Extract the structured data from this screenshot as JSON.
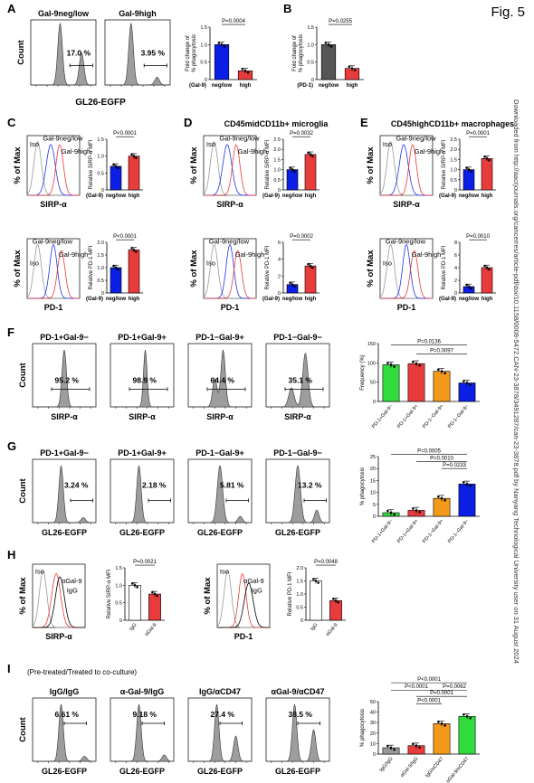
{
  "figure": {
    "title": "Fig. 5",
    "side_note": "Downloaded from http://aacrjournals.org/cancerres/article-pdf/doi/10.1158/0008-5472.CAN-23-3878/3491287/can-23-3878.pdf by Nanyang Technological University user on 31 August 2024",
    "axis": {
      "count": "Count",
      "max": "% of Max",
      "gl26": "GL26-EGFP",
      "sirpa": "SIRP-α",
      "pd1": "PD-1",
      "fold": "Fold change of",
      "fold2": "% phagocytosis",
      "rel_sirpa": "Relative SIRP-α MFI",
      "rel_pd1": "Relative PD-1 MFI",
      "freq": "Frequency (%)",
      "phago": "% phagocytosis"
    },
    "groups": {
      "gal9": "(Gal-9)",
      "pd1": "(PD-1)",
      "neg": "neg/low",
      "high": "high",
      "igg": "IgG",
      "agal9": "αGal-9",
      "iso": "Iso",
      "gal9neg": "Gal-9neg/low",
      "gal9high": "Gal-9high",
      "igg_leg": "IgG",
      "agal9_leg": "αGal-9"
    }
  },
  "panelA": {
    "letter": "A",
    "h1_title": "Gal-9neg/low",
    "h1_pct": "17.0 %",
    "h2_title": "Gal-9high",
    "h2_pct": "3.95 %",
    "pval": "P=0.0004",
    "bars": {
      "type": "bar",
      "categories": [
        "neg/low",
        "high"
      ],
      "values": [
        1.0,
        0.25
      ],
      "ylim": [
        0,
        1.5
      ],
      "yticks": [
        "0",
        "0.5",
        "1.0",
        "1.5"
      ],
      "colors": [
        "#0a1ee6",
        "#e83b3b"
      ]
    }
  },
  "panelB": {
    "letter": "B",
    "pval": "P=0.0255",
    "bars": {
      "type": "bar",
      "categories": [
        "neg/low",
        "high"
      ],
      "values": [
        1.0,
        0.32
      ],
      "ylim": [
        0,
        1.5
      ],
      "yticks": [
        "0",
        "0.5",
        "1.0",
        "1.5"
      ],
      "colors": [
        "#555555",
        "#e83b3b"
      ]
    }
  },
  "panelC": {
    "letter": "C",
    "p_top": "P<0.0001",
    "p_bot": "P<0.0001",
    "top": {
      "type": "bar",
      "categories": [
        "neg/low",
        "high"
      ],
      "values": [
        0.7,
        1.0
      ],
      "ylim": [
        0,
        1.5
      ],
      "yticks": [
        "0",
        "0.5",
        "1.0",
        "1.5"
      ]
    },
    "bot": {
      "type": "bar",
      "categories": [
        "neg/low",
        "high"
      ],
      "values": [
        1.0,
        1.7
      ],
      "ylim": [
        0,
        2.0
      ],
      "yticks": [
        "0",
        "0.5",
        "1.0",
        "1.5",
        "2.0"
      ]
    }
  },
  "panelD": {
    "letter": "D",
    "title": "CD45midCD11b+ microglia",
    "p_top": "P=0.0032",
    "p_bot": "P=0.0002",
    "top": {
      "type": "bar",
      "categories": [
        "neg/low",
        "high"
      ],
      "values": [
        1.0,
        1.75
      ],
      "ylim": [
        0,
        2.5
      ],
      "yticks": [
        "0",
        "0.5",
        "1.0",
        "1.5",
        "2.0",
        "2.5"
      ]
    },
    "bot": {
      "type": "bar",
      "categories": [
        "neg/low",
        "high"
      ],
      "values": [
        1.0,
        3.2
      ],
      "ylim": [
        0,
        6
      ],
      "yticks": [
        "0",
        "2",
        "4",
        "6"
      ]
    }
  },
  "panelE": {
    "letter": "E",
    "title": "CD45highCD11b+ macrophages",
    "p_top": "P=0.0001",
    "p_bot": "P=0.0010",
    "top": {
      "type": "bar",
      "categories": [
        "neg/low",
        "high"
      ],
      "values": [
        1.0,
        1.55
      ],
      "ylim": [
        0,
        2.5
      ],
      "yticks": [
        "0",
        "0.5",
        "1.0",
        "1.5",
        "2.0",
        "2.5"
      ]
    },
    "bot": {
      "type": "bar",
      "categories": [
        "neg/low",
        "high"
      ],
      "values": [
        1.0,
        4.0
      ],
      "ylim": [
        0,
        8
      ],
      "yticks": [
        "0",
        "2",
        "4",
        "6",
        "8"
      ]
    }
  },
  "panelF": {
    "letter": "F",
    "hist": [
      {
        "title": "PD-1+Gal-9−",
        "pct": "95.2 %"
      },
      {
        "title": "PD-1+Gal-9+",
        "pct": "98.9 %"
      },
      {
        "title": "PD-1−Gal-9+",
        "pct": "64.4 %"
      },
      {
        "title": "PD-1−Gal-9−",
        "pct": "35.1 %"
      }
    ],
    "p1": "P=0.0136",
    "p2": "P=0.0097",
    "bars": {
      "type": "bar",
      "categories": [
        "PD-1+Gal-9−",
        "PD-1+Gal-9+",
        "PD-1−Gal-9+",
        "PD-1−Gal-9−"
      ],
      "values": [
        95,
        98,
        78,
        48
      ],
      "ylim": [
        0,
        150
      ],
      "yticks": [
        "0",
        "50",
        "100",
        "150"
      ],
      "colors": [
        "#2fdc3c",
        "#e83b3b",
        "#f39a1a",
        "#0a1ee6"
      ]
    }
  },
  "panelG": {
    "letter": "G",
    "hist": [
      {
        "title": "PD-1+Gal-9−",
        "pct": "3.24 %"
      },
      {
        "title": "PD-1+Gal-9+",
        "pct": "2.18 %"
      },
      {
        "title": "PD-1−Gal-9+",
        "pct": "5.81 %"
      },
      {
        "title": "PD-1−Gal-9−",
        "pct": "13.2 %"
      }
    ],
    "p1": "P=0.0005",
    "p2": "P=0.0010",
    "p3": "P=0.0233",
    "bars": {
      "type": "bar",
      "categories": [
        "PD-1+Gal-9−",
        "PD-1+Gal-9+",
        "PD-1−Gal-9+",
        "PD-1−Gal-9−"
      ],
      "values": [
        1.5,
        2.5,
        7.5,
        13.5
      ],
      "ylim": [
        0,
        25
      ],
      "yticks": [
        "0",
        "5",
        "10",
        "15",
        "20",
        "25"
      ],
      "colors": [
        "#2fdc3c",
        "#e83b3b",
        "#f39a1a",
        "#0a1ee6"
      ]
    }
  },
  "panelH": {
    "letter": "H",
    "p1": "P=0.0021",
    "p2": "P=0.0048",
    "left": {
      "type": "bar",
      "categories": [
        "IgG",
        "αGal-9"
      ],
      "values": [
        1.0,
        0.75
      ],
      "ylim": [
        0,
        1.5
      ],
      "yticks": [
        "0",
        "0.5",
        "1.0",
        "1.5"
      ]
    },
    "right": {
      "type": "bar",
      "categories": [
        "IgG",
        "αGal-9"
      ],
      "values": [
        1.5,
        0.75
      ],
      "ylim": [
        0,
        2.0
      ],
      "yticks": [
        "0",
        "0.5",
        "1.0",
        "1.5",
        "2.0"
      ]
    }
  },
  "panelI": {
    "letter": "I",
    "subtitle": "(Pre-treated/Treated to co-culture)",
    "hist": [
      {
        "title": "IgG/IgG",
        "pct": "6.61 %"
      },
      {
        "title": "α-Gal-9/IgG",
        "pct": "9.18 %"
      },
      {
        "title": "IgG/αCD47",
        "pct": "27.4 %"
      },
      {
        "title": "αGal-9/αCD47",
        "pct": "38.5 %"
      }
    ],
    "p_top": "P<0.0001",
    "p_a": "P<0.0001",
    "p_b": "P=0.0062",
    "p_c": "P<0.0001",
    "p_d": "P=0.0001",
    "bars": {
      "type": "bar",
      "categories": [
        "IgG/IgG",
        "αGal-9/IgG",
        "IgG/αCD47",
        "αGal-9/αCD47"
      ],
      "values": [
        6,
        8,
        29,
        36
      ],
      "ylim": [
        0,
        50
      ],
      "yticks": [
        "0",
        "10",
        "20",
        "30",
        "40",
        "50"
      ],
      "colors": [
        "#9a9a9a",
        "#e83b3b",
        "#f39a1a",
        "#2fdc3c"
      ]
    }
  }
}
